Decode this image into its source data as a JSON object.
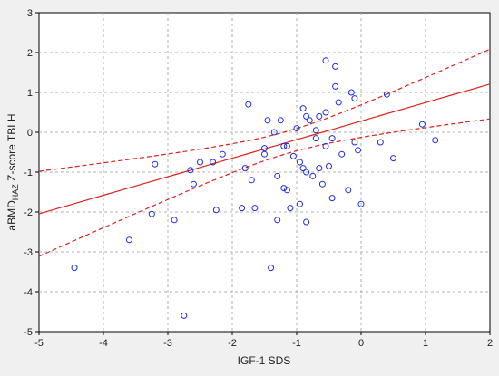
{
  "chart_data": {
    "type": "scatter",
    "title": "",
    "xlabel": "IGF-1 SDS",
    "ylabel_parts": [
      "aBMD",
      "HAZ",
      " Z-score TBLH"
    ],
    "xlim": [
      -5,
      2
    ],
    "ylim": [
      -5,
      3
    ],
    "xticks": [
      "-5",
      "-4",
      "-3",
      "-2",
      "-1",
      "0",
      "1",
      "2"
    ],
    "yticks": [
      "-5",
      "-4",
      "-3",
      "-2",
      "-1",
      "0",
      "1",
      "2",
      "3"
    ],
    "grid": true,
    "colors": {
      "points": "#1f2de0",
      "fit": "#e0201b",
      "background": "#f0f0f0",
      "plot_area": "#ffffff"
    },
    "points": [
      [
        -4.45,
        -3.4
      ],
      [
        -3.6,
        -2.7
      ],
      [
        -3.25,
        -2.05
      ],
      [
        -3.2,
        -0.8
      ],
      [
        -2.9,
        -2.2
      ],
      [
        -2.75,
        -4.6
      ],
      [
        -2.65,
        -0.95
      ],
      [
        -2.6,
        -1.3
      ],
      [
        -2.5,
        -0.75
      ],
      [
        -2.3,
        -0.75
      ],
      [
        -2.25,
        -1.95
      ],
      [
        -2.15,
        -0.55
      ],
      [
        -1.85,
        -1.9
      ],
      [
        -1.8,
        -0.9
      ],
      [
        -1.75,
        0.7
      ],
      [
        -1.7,
        -1.2
      ],
      [
        -1.65,
        -1.9
      ],
      [
        -1.5,
        -0.55
      ],
      [
        -1.5,
        -0.4
      ],
      [
        -1.45,
        0.3
      ],
      [
        -1.4,
        -3.4
      ],
      [
        -1.35,
        0.0
      ],
      [
        -1.3,
        -1.1
      ],
      [
        -1.3,
        -2.2
      ],
      [
        -1.25,
        0.3
      ],
      [
        -1.2,
        -0.35
      ],
      [
        -1.2,
        -1.4
      ],
      [
        -1.15,
        -0.35
      ],
      [
        -1.15,
        -1.45
      ],
      [
        -1.1,
        -1.9
      ],
      [
        -1.05,
        -0.6
      ],
      [
        -1.0,
        0.1
      ],
      [
        -0.95,
        -0.75
      ],
      [
        -0.95,
        -1.8
      ],
      [
        -0.9,
        -0.9
      ],
      [
        -0.9,
        0.6
      ],
      [
        -0.85,
        0.4
      ],
      [
        -0.85,
        -1.0
      ],
      [
        -0.85,
        -2.25
      ],
      [
        -0.8,
        0.3
      ],
      [
        -0.75,
        -1.1
      ],
      [
        -0.7,
        0.05
      ],
      [
        -0.7,
        -0.15
      ],
      [
        -0.65,
        -0.9
      ],
      [
        -0.65,
        0.4
      ],
      [
        -0.6,
        -1.3
      ],
      [
        -0.55,
        1.8
      ],
      [
        -0.55,
        0.5
      ],
      [
        -0.55,
        -0.35
      ],
      [
        -0.5,
        -0.85
      ],
      [
        -0.45,
        -1.65
      ],
      [
        -0.45,
        -0.15
      ],
      [
        -0.4,
        1.15
      ],
      [
        -0.4,
        1.65
      ],
      [
        -0.35,
        0.75
      ],
      [
        -0.3,
        -0.55
      ],
      [
        -0.2,
        -1.45
      ],
      [
        -0.15,
        1.0
      ],
      [
        -0.1,
        0.85
      ],
      [
        -0.1,
        -0.25
      ],
      [
        -0.05,
        -0.45
      ],
      [
        0.0,
        -1.8
      ],
      [
        0.3,
        -0.25
      ],
      [
        0.4,
        0.95
      ],
      [
        0.5,
        -0.65
      ],
      [
        0.95,
        0.2
      ],
      [
        1.15,
        -0.2
      ]
    ],
    "fit_line": {
      "intercept": 0.28,
      "slope": 0.465
    }
  }
}
